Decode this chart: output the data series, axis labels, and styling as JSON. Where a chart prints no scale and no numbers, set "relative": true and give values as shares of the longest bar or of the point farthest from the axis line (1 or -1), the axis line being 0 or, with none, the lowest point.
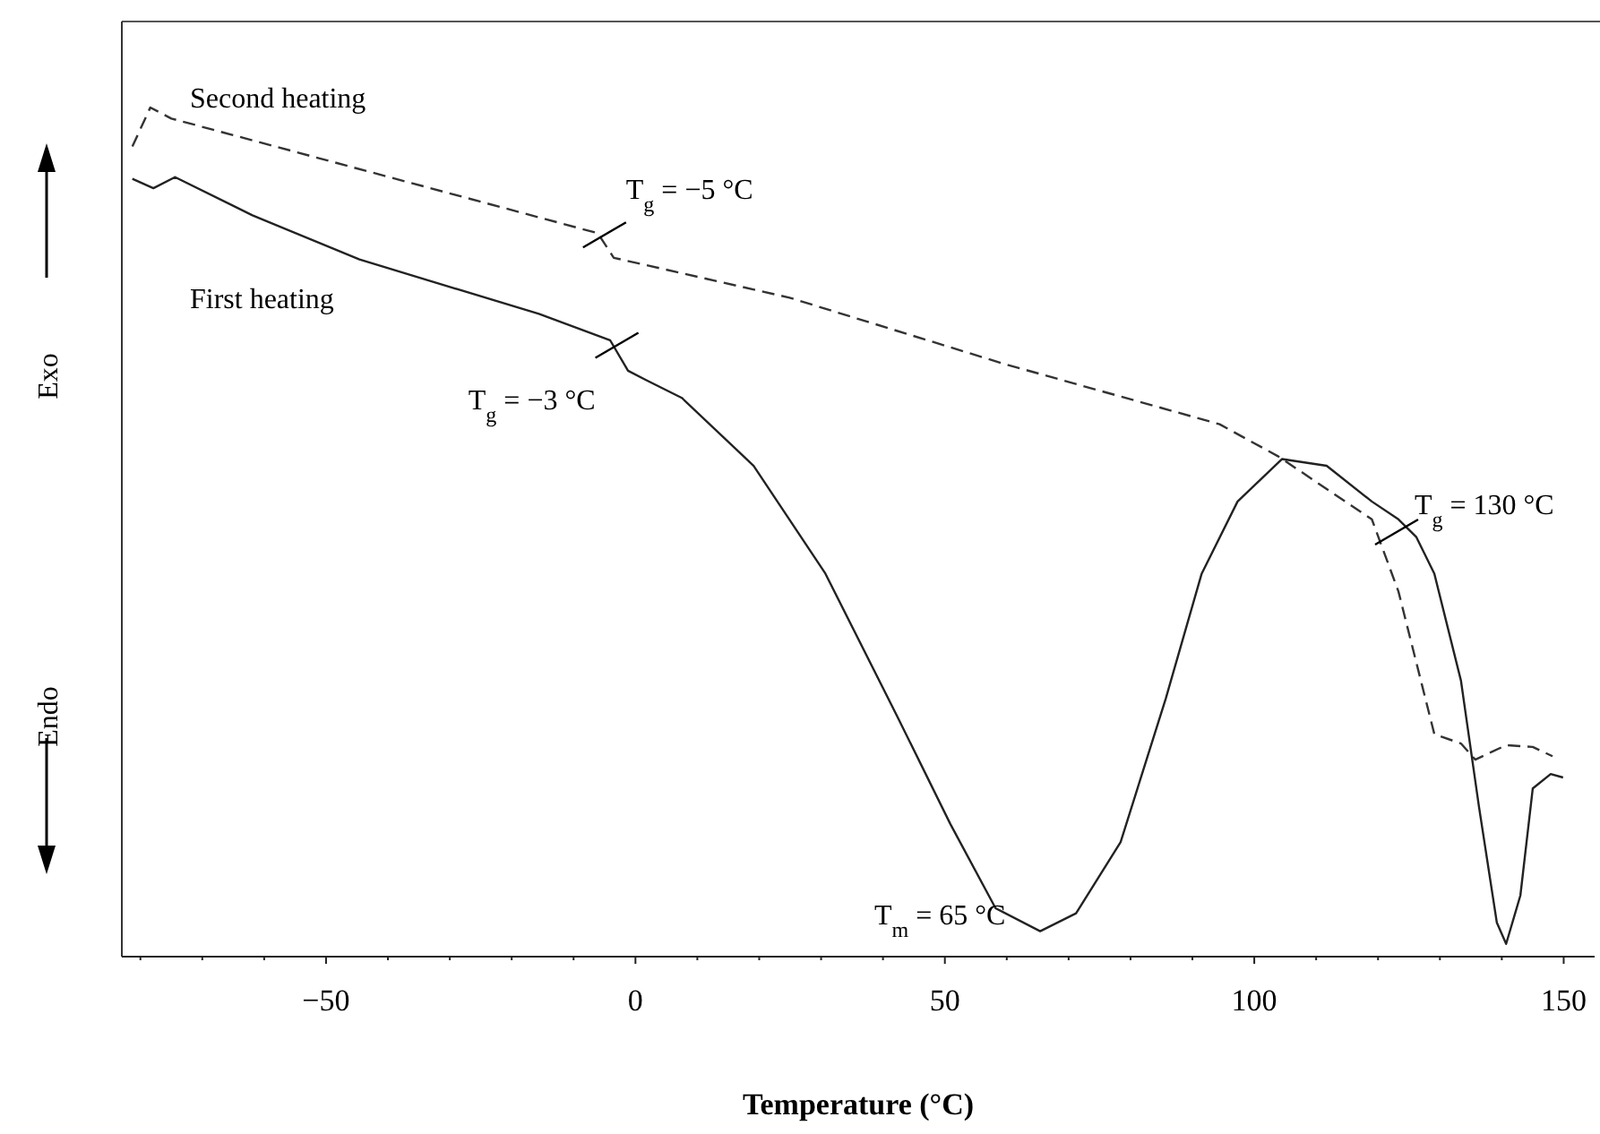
{
  "chart_data": {
    "type": "line",
    "relative": true,
    "xlabel": "Temperature (°C)",
    "xlim": [
      -83,
      155
    ],
    "xticks": [
      {
        "value": -80,
        "label": null
      },
      {
        "value": -70,
        "label": null
      },
      {
        "value": -60,
        "label": null
      },
      -50,
      {
        "value": -40,
        "label": null
      },
      {
        "value": -30,
        "label": null
      },
      {
        "value": -20,
        "label": null
      },
      {
        "value": -10,
        "label": null
      },
      0,
      {
        "value": 10,
        "label": null
      },
      {
        "value": 20,
        "label": null
      },
      {
        "value": 30,
        "label": null
      },
      {
        "value": 40,
        "label": null
      },
      50,
      {
        "value": 60,
        "label": null
      },
      {
        "value": 70,
        "label": null
      },
      {
        "value": 80,
        "label": null
      },
      {
        "value": 90,
        "label": null
      },
      100,
      {
        "value": 110,
        "label": null
      },
      {
        "value": 120,
        "label": null
      },
      {
        "value": 130,
        "label": null
      },
      {
        "value": 140,
        "label": null
      },
      150
    ],
    "series": [
      {
        "name": "Second heating",
        "color": "#333333",
        "line_style": "dashed",
        "x": [
          -81.3,
          -78.4,
          -75,
          -6.1,
          -3.5,
          24.9,
          59.6,
          94.4,
          103.9,
          119,
          123.3,
          126.2,
          129.1,
          133.4,
          135.7,
          140.7,
          145,
          148.2
        ],
        "values": [
          0.954,
          1,
          0.987,
          0.852,
          0.823,
          0.776,
          0.698,
          0.627,
          0.589,
          0.515,
          0.43,
          0.346,
          0.262,
          0.251,
          0.232,
          0.249,
          0.247,
          0.236
        ]
      },
      {
        "name": "First heating",
        "color": "#222222",
        "line_style": "solid",
        "x": [
          -81.3,
          -77.9,
          -74.4,
          -61.9,
          -44.6,
          -30.1,
          -15.6,
          -4.1,
          -1.2,
          1.7,
          7.5,
          19.1,
          30.7,
          42.3,
          50.9,
          58.2,
          65.4,
          71.2,
          78.4,
          85.7,
          91.5,
          97.3,
          104.5,
          111.7,
          119,
          123.3,
          126.2,
          129.1,
          133.4,
          136.3,
          139.2,
          140.7,
          143,
          145,
          147.9,
          149.9
        ],
        "values": [
          0.916,
          0.905,
          0.918,
          0.873,
          0.821,
          0.789,
          0.757,
          0.726,
          0.69,
          0.679,
          0.658,
          0.578,
          0.451,
          0.283,
          0.156,
          0.057,
          0.03,
          0.051,
          0.135,
          0.304,
          0.451,
          0.536,
          0.586,
          0.578,
          0.536,
          0.515,
          0.494,
          0.451,
          0.325,
          0.177,
          0.04,
          0.015,
          0.072,
          0.198,
          0.215,
          0.211
        ]
      }
    ],
    "annotations": [
      {
        "text": "T$_{g}$ = −5 °C",
        "x": -5,
        "y": 0.85
      },
      {
        "text": "T$_{g}$ = −3 °C",
        "x": -3,
        "y": 0.72
      },
      {
        "text": "T$_{g}$ = 130 °C",
        "x": 123,
        "y": 0.5
      },
      {
        "text": "T$_{m}$ = 65 °C",
        "x": 65,
        "y": 0.03
      },
      "Exo",
      "Endo"
    ]
  }
}
